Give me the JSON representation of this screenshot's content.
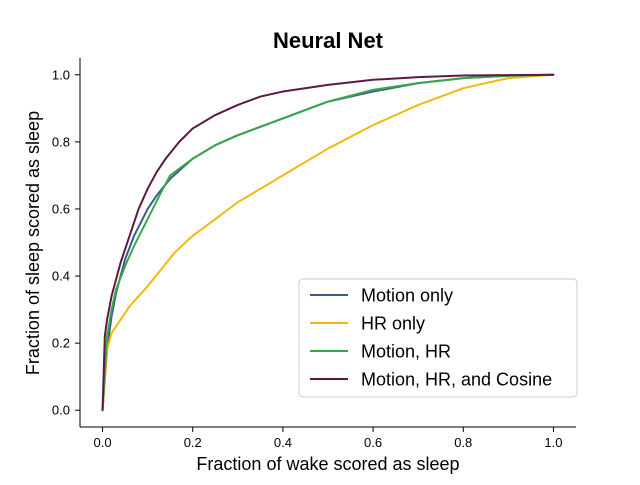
{
  "chart_data": {
    "type": "line",
    "title": "Neural Net",
    "xlabel": "Fraction of wake scored as sleep",
    "ylabel": "Fraction of sleep scored as sleep",
    "xlim": [
      -0.05,
      1.05
    ],
    "ylim": [
      -0.05,
      1.05
    ],
    "xticks": [
      "0.0",
      "0.2",
      "0.4",
      "0.6",
      "0.8",
      "1.0"
    ],
    "yticks": [
      "0.0",
      "0.2",
      "0.4",
      "0.6",
      "0.8",
      "1.0"
    ],
    "grid": false,
    "legend_position": "lower-right",
    "series": [
      {
        "name": "Motion only",
        "color": "#3b5b8c",
        "x": [
          0,
          0.01,
          0.02,
          0.03,
          0.05,
          0.07,
          0.1,
          0.12,
          0.15,
          0.2,
          0.25,
          0.3,
          0.4,
          0.5,
          0.6,
          0.7,
          0.8,
          0.9,
          1.0
        ],
        "y": [
          0,
          0.18,
          0.28,
          0.35,
          0.45,
          0.52,
          0.6,
          0.64,
          0.69,
          0.75,
          0.79,
          0.82,
          0.87,
          0.92,
          0.95,
          0.975,
          0.99,
          0.997,
          1.0
        ]
      },
      {
        "name": "HR only",
        "color": "#f2b80f",
        "x": [
          0,
          0.01,
          0.02,
          0.04,
          0.06,
          0.08,
          0.1,
          0.13,
          0.16,
          0.2,
          0.25,
          0.3,
          0.4,
          0.5,
          0.6,
          0.7,
          0.8,
          0.9,
          1.0
        ],
        "y": [
          0,
          0.18,
          0.23,
          0.27,
          0.31,
          0.34,
          0.37,
          0.42,
          0.47,
          0.52,
          0.57,
          0.62,
          0.7,
          0.78,
          0.85,
          0.91,
          0.96,
          0.99,
          1.0
        ]
      },
      {
        "name": "Motion, HR",
        "color": "#3aa64b",
        "x": [
          0,
          0.01,
          0.02,
          0.03,
          0.05,
          0.07,
          0.1,
          0.13,
          0.15,
          0.2,
          0.25,
          0.3,
          0.4,
          0.5,
          0.6,
          0.7,
          0.8,
          0.9,
          1.0
        ],
        "y": [
          0,
          0.22,
          0.3,
          0.36,
          0.43,
          0.49,
          0.57,
          0.65,
          0.7,
          0.75,
          0.79,
          0.82,
          0.87,
          0.92,
          0.955,
          0.975,
          0.99,
          0.997,
          1.0
        ]
      },
      {
        "name": "Motion, HR, and Cosine",
        "color": "#5b1a45",
        "x": [
          0,
          0.005,
          0.01,
          0.02,
          0.04,
          0.06,
          0.08,
          0.1,
          0.12,
          0.14,
          0.17,
          0.2,
          0.25,
          0.3,
          0.35,
          0.4,
          0.5,
          0.6,
          0.7,
          0.8,
          0.9,
          1.0
        ],
        "y": [
          0,
          0.22,
          0.27,
          0.34,
          0.44,
          0.52,
          0.6,
          0.66,
          0.71,
          0.75,
          0.8,
          0.84,
          0.88,
          0.91,
          0.935,
          0.95,
          0.97,
          0.985,
          0.993,
          0.998,
          0.999,
          1.0
        ]
      }
    ]
  }
}
